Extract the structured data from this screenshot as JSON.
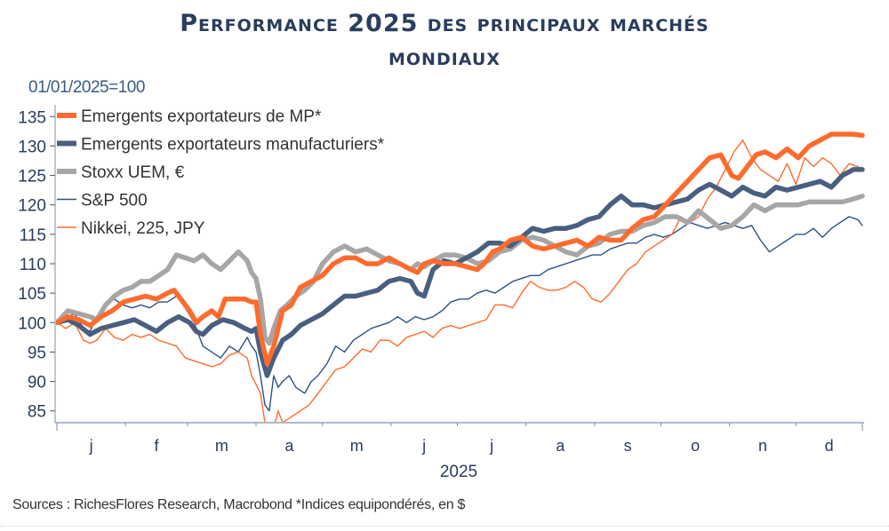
{
  "header": {
    "title_line1": "Performance 2025 des principaux marchés",
    "title_line2": "mondiaux",
    "subtitle": "01/01/2025=100"
  },
  "footer": {
    "source": "Sources : RichesFlores Research, Macrobond *Indices equipondérés, en $"
  },
  "chart_data": {
    "type": "line",
    "title": "Performance 2025 des principaux marchés mondiaux",
    "subtitle": "01/01/2025=100",
    "xlabel": "2025",
    "ylabel": "",
    "x_unit": "day of year 2025",
    "xlim": [
      0,
      364
    ],
    "ylim": [
      83,
      137
    ],
    "yticks": [
      85,
      90,
      95,
      100,
      105,
      110,
      115,
      120,
      125,
      130,
      135
    ],
    "month_ticks": [
      0,
      31,
      59,
      90,
      120,
      151,
      181,
      212,
      243,
      273,
      304,
      334,
      364
    ],
    "month_labels": [
      "j",
      "f",
      "m",
      "a",
      "m",
      "j",
      "j",
      "a",
      "s",
      "o",
      "n",
      "d"
    ],
    "grid": false,
    "legend_position": "top-left",
    "series": [
      {
        "name": "Emergents exportateurs de MP*",
        "color": "#ff6b2d",
        "style": "thick",
        "x": [
          0,
          5,
          10,
          15,
          20,
          25,
          30,
          35,
          40,
          45,
          50,
          53,
          56,
          60,
          63,
          66,
          70,
          73,
          76,
          80,
          85,
          88,
          90,
          92,
          95,
          98,
          102,
          106,
          110,
          115,
          120,
          125,
          130,
          135,
          140,
          145,
          150,
          155,
          160,
          163,
          166,
          170,
          175,
          180,
          185,
          190,
          193,
          197,
          200,
          205,
          210,
          215,
          220,
          225,
          230,
          235,
          240,
          245,
          250,
          255,
          260,
          265,
          270,
          275,
          280,
          285,
          290,
          295,
          300,
          305,
          308,
          312,
          316,
          320,
          325,
          330,
          335,
          340,
          345,
          350,
          355,
          360,
          364
        ],
        "values": [
          100,
          101,
          100.5,
          99.5,
          101,
          102,
          103.5,
          104,
          104.5,
          104,
          105,
          105.5,
          104,
          102,
          100,
          101,
          102,
          101,
          104,
          104,
          104,
          103.5,
          103.5,
          98,
          93,
          96,
          102,
          103,
          106,
          107,
          108,
          110,
          111,
          111,
          110,
          110,
          111,
          110,
          109,
          108.5,
          110,
          110.5,
          110,
          110,
          109.5,
          109,
          110,
          112,
          112.5,
          114,
          114.5,
          113,
          112.5,
          113,
          113.5,
          114,
          113,
          114.5,
          114,
          114,
          116,
          117.5,
          118,
          120,
          122,
          124,
          126,
          128,
          128.5,
          125,
          124.5,
          126.5,
          128.5,
          129,
          128,
          129.5,
          128,
          130,
          131,
          132,
          132,
          132,
          131.8
        ]
      },
      {
        "name": "Emergents exportateurs manufacturiers*",
        "color": "#4a5f7f",
        "style": "thick",
        "x": [
          0,
          5,
          10,
          15,
          20,
          25,
          30,
          35,
          40,
          45,
          50,
          55,
          60,
          63,
          66,
          70,
          75,
          80,
          85,
          88,
          90,
          92,
          95,
          98,
          102,
          106,
          110,
          115,
          120,
          125,
          130,
          135,
          140,
          145,
          150,
          155,
          160,
          163,
          166,
          170,
          175,
          180,
          185,
          190,
          195,
          200,
          205,
          210,
          215,
          220,
          225,
          230,
          235,
          240,
          245,
          250,
          255,
          260,
          265,
          270,
          275,
          280,
          285,
          290,
          295,
          300,
          305,
          310,
          315,
          320,
          325,
          330,
          335,
          340,
          345,
          350,
          355,
          360,
          364
        ],
        "values": [
          100,
          100.5,
          99.5,
          98,
          99,
          99.5,
          100,
          100.5,
          99.5,
          98.5,
          100,
          101,
          100,
          98.5,
          98,
          99.5,
          100.5,
          100,
          99,
          98.5,
          99,
          95,
          91,
          94,
          97,
          98,
          99.5,
          100.5,
          101.5,
          103,
          104.5,
          104.5,
          105,
          105.5,
          107,
          107.5,
          107,
          105,
          104.5,
          109,
          110.5,
          110,
          111,
          112,
          113.5,
          113.5,
          113,
          114.5,
          116,
          115.5,
          116,
          116,
          116.5,
          117.5,
          118,
          120,
          121.5,
          120,
          120,
          119.5,
          120,
          120.5,
          121,
          122.5,
          123.5,
          122.5,
          121.5,
          123,
          122,
          121.5,
          123,
          122.5,
          123,
          123.5,
          124,
          123,
          125,
          126,
          126
        ]
      },
      {
        "name": "Stoxx UEM, €",
        "color": "#a6a6a6",
        "style": "thick",
        "x": [
          0,
          5,
          10,
          15,
          18,
          22,
          26,
          30,
          34,
          38,
          42,
          46,
          50,
          54,
          58,
          62,
          66,
          70,
          74,
          78,
          82,
          86,
          88,
          90,
          92,
          94,
          96,
          98,
          101,
          104,
          108,
          112,
          116,
          120,
          125,
          130,
          135,
          140,
          145,
          150,
          155,
          160,
          163,
          166,
          170,
          175,
          180,
          185,
          190,
          195,
          200,
          205,
          210,
          215,
          220,
          225,
          230,
          235,
          240,
          245,
          250,
          255,
          260,
          265,
          270,
          275,
          280,
          285,
          290,
          295,
          300,
          305,
          310,
          315,
          320,
          325,
          330,
          335,
          340,
          345,
          350,
          355,
          360,
          364
        ],
        "values": [
          100,
          102,
          101.5,
          101,
          100.5,
          103,
          104.5,
          105.5,
          106,
          107,
          107,
          108,
          109,
          111.5,
          111,
          110.5,
          111.5,
          110,
          109,
          110.5,
          112,
          110.5,
          108.5,
          107.5,
          104,
          97.5,
          96.5,
          99,
          102,
          103,
          104.5,
          105.5,
          107,
          110,
          112,
          113,
          112,
          112.5,
          111.5,
          110.5,
          110,
          109,
          110,
          109.5,
          110.5,
          111.5,
          111.5,
          111,
          110,
          110.5,
          112,
          112.5,
          114,
          114.5,
          114,
          113,
          112,
          111.5,
          113,
          113.5,
          115,
          115.5,
          115.5,
          116.5,
          117,
          118,
          118,
          117,
          119,
          117.5,
          116,
          116.5,
          118,
          120,
          119,
          120,
          120,
          120,
          120.5,
          120.5,
          120.5,
          120.5,
          121,
          121.5
        ]
      },
      {
        "name": "S&P 500",
        "color": "#2c5289",
        "style": "thin",
        "x": [
          0,
          5,
          8,
          12,
          15,
          18,
          22,
          26,
          30,
          34,
          38,
          42,
          46,
          50,
          54,
          58,
          62,
          64,
          66,
          70,
          74,
          78,
          82,
          86,
          88,
          90,
          92,
          94,
          96,
          98,
          100,
          102,
          105,
          108,
          112,
          115,
          118,
          122,
          126,
          130,
          134,
          138,
          142,
          146,
          150,
          154,
          158,
          162,
          166,
          170,
          174,
          178,
          182,
          186,
          190,
          194,
          198,
          202,
          206,
          210,
          214,
          218,
          222,
          226,
          230,
          234,
          238,
          242,
          246,
          250,
          254,
          258,
          262,
          266,
          270,
          274,
          278,
          282,
          286,
          290,
          294,
          298,
          302,
          306,
          310,
          314,
          318,
          322,
          326,
          330,
          334,
          338,
          342,
          346,
          350,
          354,
          358,
          362,
          364
        ],
        "values": [
          100,
          101,
          101.5,
          99,
          98.5,
          101,
          103,
          104,
          103,
          102.5,
          103,
          102.5,
          103.5,
          103.5,
          104.5,
          102.5,
          100,
          98,
          96,
          95,
          94,
          96,
          95,
          97.5,
          96,
          95,
          91,
          86,
          85,
          91,
          89,
          90,
          91,
          89,
          88,
          90,
          91,
          93,
          96,
          95,
          97,
          98,
          99,
          99.5,
          100,
          101,
          100,
          101,
          100.5,
          101,
          102,
          103.5,
          104,
          104,
          105,
          105.5,
          105,
          106,
          107,
          107.5,
          108,
          108,
          109,
          109.5,
          110,
          110.5,
          111,
          111.5,
          111.5,
          112.5,
          113,
          113.5,
          113.5,
          114.5,
          115,
          114.5,
          115,
          116,
          117,
          116.5,
          116,
          116.5,
          117,
          116.5,
          116,
          116.5,
          114,
          112,
          113,
          114,
          115,
          115,
          116,
          114.5,
          116,
          117,
          118,
          117.5,
          116.5
        ]
      },
      {
        "name": "Nikkei, 225, JPY",
        "color": "#ff6b2d",
        "style": "thin",
        "x": [
          0,
          4,
          8,
          12,
          15,
          18,
          22,
          26,
          30,
          34,
          38,
          42,
          46,
          50,
          54,
          58,
          62,
          66,
          70,
          74,
          78,
          82,
          86,
          88,
          90,
          92,
          94,
          96,
          98,
          100,
          102,
          106,
          110,
          114,
          118,
          122,
          126,
          130,
          134,
          138,
          142,
          146,
          150,
          154,
          158,
          162,
          166,
          170,
          174,
          178,
          182,
          186,
          190,
          194,
          198,
          202,
          206,
          210,
          214,
          218,
          222,
          226,
          230,
          234,
          238,
          242,
          246,
          250,
          254,
          258,
          262,
          266,
          270,
          274,
          278,
          282,
          286,
          290,
          294,
          298,
          302,
          306,
          310,
          314,
          318,
          322,
          326,
          330,
          334,
          338,
          342,
          346,
          350,
          354,
          358,
          362,
          364
        ],
        "values": [
          100,
          99,
          100,
          97,
          96.5,
          97,
          99,
          97.5,
          97,
          98,
          97.5,
          98,
          97,
          96.5,
          96,
          94,
          93.5,
          93,
          92.5,
          93,
          94.5,
          95,
          94,
          91,
          89.5,
          88,
          83,
          80,
          82,
          85,
          83,
          84,
          85,
          86,
          88,
          90,
          92,
          92.5,
          94,
          95.5,
          95,
          97,
          97,
          96,
          97.5,
          98,
          98.5,
          97.5,
          99,
          99.5,
          99,
          99.5,
          100,
          100.5,
          103,
          103,
          102.5,
          105,
          107,
          106,
          105.5,
          105.5,
          106,
          107,
          106,
          104,
          103.5,
          105,
          107,
          109,
          110,
          112,
          113,
          114,
          115,
          118,
          117,
          118,
          121,
          123,
          126,
          129,
          131,
          128,
          126,
          125,
          124,
          127,
          123.5,
          128,
          126.5,
          128,
          127,
          125,
          127,
          126.5,
          126
        ]
      }
    ]
  }
}
